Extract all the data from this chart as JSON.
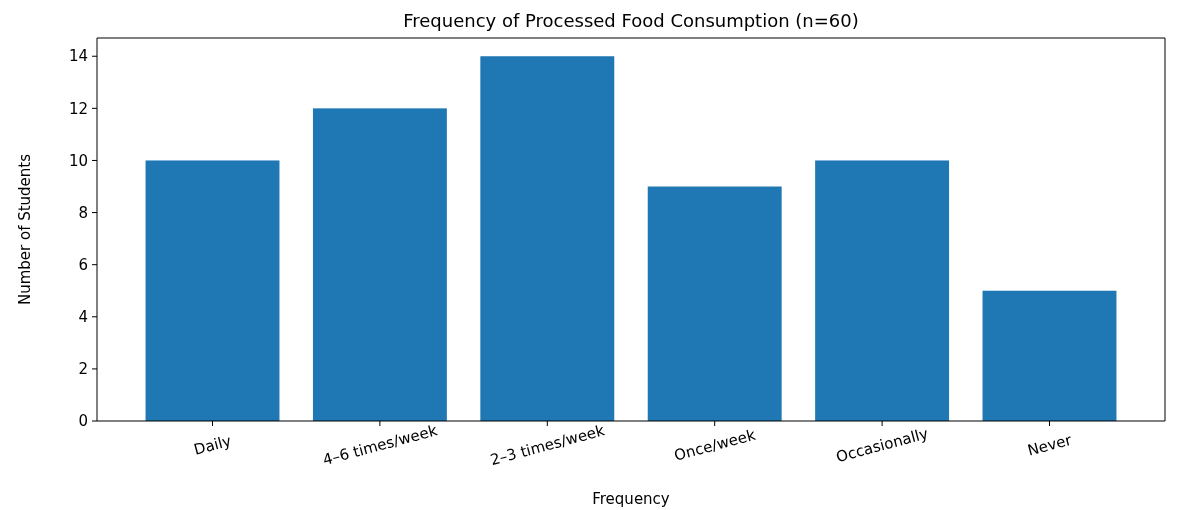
{
  "chart_data": {
    "type": "bar",
    "title": "Frequency of Processed Food Consumption (n=60)",
    "xlabel": "Frequency",
    "ylabel": "Number of Students",
    "categories": [
      "Daily",
      "4–6 times/week",
      "2–3 times/week",
      "Once/week",
      "Occasionally",
      "Never"
    ],
    "values": [
      10,
      12,
      14,
      9,
      10,
      5
    ],
    "color": "#1f77b4",
    "ylim": [
      0,
      14.7
    ],
    "yticks": [
      0,
      2,
      4,
      6,
      8,
      10,
      12,
      14
    ],
    "grid": false
  }
}
